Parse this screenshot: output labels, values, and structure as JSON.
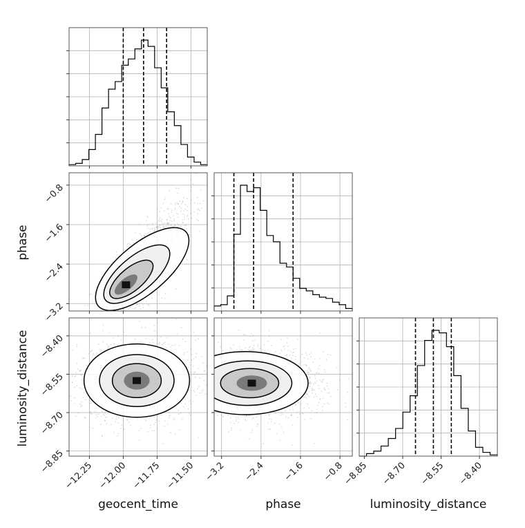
{
  "chart_data": {
    "type": "corner",
    "parameters": [
      "geocent_time",
      "phase",
      "luminosity_distance"
    ],
    "axis_labels": {
      "geocent_time": "geocent_time",
      "phase": "phase",
      "luminosity_distance": "luminosity_distance"
    },
    "ranges": {
      "geocent_time": [
        -12.4,
        -11.38
      ],
      "phase": [
        -3.35,
        -0.55
      ],
      "luminosity_distance": [
        -8.87,
        -8.33
      ]
    },
    "ticks": {
      "geocent_time": [
        {
          "value": -12.25,
          "label": "−12.25"
        },
        {
          "value": -12.0,
          "label": "−12.00"
        },
        {
          "value": -11.75,
          "label": "−11.75"
        },
        {
          "value": -11.5,
          "label": "−11.50"
        }
      ],
      "phase": [
        {
          "value": -3.2,
          "label": "−3.2"
        },
        {
          "value": -2.4,
          "label": "−2.4"
        },
        {
          "value": -1.6,
          "label": "−1.6"
        },
        {
          "value": -0.8,
          "label": "−0.8"
        }
      ],
      "luminosity_distance": [
        {
          "value": -8.85,
          "label": "−8.85"
        },
        {
          "value": -8.7,
          "label": "−8.70"
        },
        {
          "value": -8.55,
          "label": "−8.55"
        },
        {
          "value": -8.4,
          "label": "−8.40"
        }
      ]
    },
    "quantiles": {
      "geocent_time": [
        -12.0,
        -11.85,
        -11.68
      ],
      "phase": [
        -2.95,
        -2.55,
        -1.75
      ],
      "luminosity_distance": [
        -8.65,
        -8.58,
        -8.51
      ]
    },
    "histograms": {
      "geocent_time": [
        0.01,
        0.02,
        0.05,
        0.13,
        0.25,
        0.46,
        0.61,
        0.67,
        0.8,
        0.85,
        0.93,
        1.0,
        0.95,
        0.78,
        0.62,
        0.43,
        0.32,
        0.17,
        0.07,
        0.03,
        0.01
      ],
      "phase": [
        0.04,
        0.05,
        0.12,
        0.61,
        1.0,
        0.95,
        0.98,
        0.8,
        0.6,
        0.55,
        0.38,
        0.35,
        0.26,
        0.18,
        0.16,
        0.13,
        0.11,
        0.1,
        0.07,
        0.05,
        0.02
      ],
      "luminosity_distance": [
        0.0,
        0.02,
        0.04,
        0.08,
        0.14,
        0.22,
        0.35,
        0.48,
        0.72,
        0.92,
        1.0,
        0.98,
        0.87,
        0.64,
        0.38,
        0.2,
        0.07,
        0.03,
        0.01
      ]
    },
    "scatter_clouds": {
      "phase_vs_geocent_time": {
        "mean": [
          -11.86,
          -2.5
        ],
        "std": [
          0.16,
          0.58
        ],
        "corr": 0.82
      },
      "luminosity_distance_vs_geocent_time": {
        "mean": [
          -11.9,
          -8.575
        ],
        "std": [
          0.19,
          0.07
        ],
        "corr": 0.05
      },
      "luminosity_distance_vs_phase": {
        "mean": [
          -2.5,
          -8.585
        ],
        "std": [
          0.62,
          0.06
        ],
        "corr": 0.0
      }
    },
    "grid": true,
    "legend": "none"
  }
}
